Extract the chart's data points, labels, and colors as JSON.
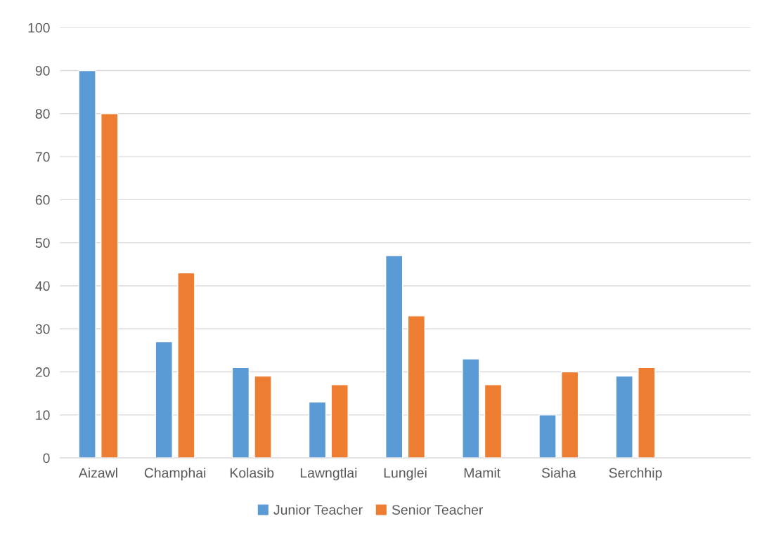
{
  "chart_data": {
    "type": "bar",
    "categories": [
      "Aizawl",
      "Champhai",
      "Kolasib",
      "Lawngtlai",
      "Lunglei",
      "Mamit",
      "Siaha",
      "Serchhip",
      null
    ],
    "series": [
      {
        "name": "Junior Teacher",
        "color": "#5b9bd5",
        "values": [
          90,
          27,
          21,
          13,
          47,
          23,
          10,
          19,
          null
        ]
      },
      {
        "name": "Senior Teacher",
        "color": "#ed7d31",
        "values": [
          80,
          43,
          19,
          17,
          33,
          17,
          20,
          21,
          null
        ]
      }
    ],
    "ylim": [
      0,
      100
    ],
    "yticks": [
      0,
      10,
      20,
      30,
      40,
      50,
      60,
      70,
      80,
      90,
      100
    ],
    "grid": "y",
    "legend": "bottom"
  }
}
